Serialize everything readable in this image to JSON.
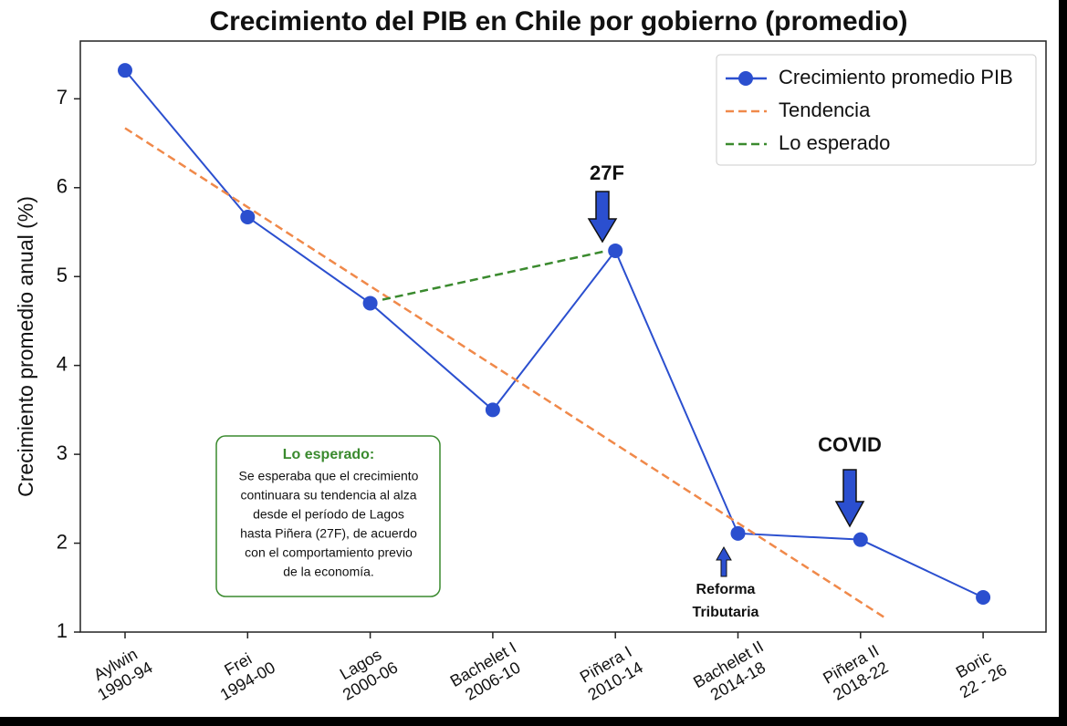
{
  "chart_data": {
    "type": "line",
    "title": "Crecimiento del PIB en Chile por gobierno (promedio)",
    "y_label": "Crecimiento promedio anual (%)",
    "categories": [
      "Aylwin\n1990-94",
      "Frei\n1994-00",
      "Lagos\n2000-06",
      "Bachelet I\n2006-10",
      "Piñera I\n2010-14",
      "Bachelet II\n2014-18",
      "Piñera II\n2018-22",
      "Boric\n22 - 26"
    ],
    "series": [
      {
        "name": "Crecimiento promedio PIB",
        "color": "#2b4fcf",
        "style": "solid-marker",
        "values": [
          7.32,
          5.67,
          4.7,
          3.5,
          5.29,
          2.11,
          2.04,
          1.39
        ]
      },
      {
        "name": "Tendencia",
        "color": "#f0894a",
        "style": "dashed",
        "x": [
          0,
          6.2
        ],
        "values": [
          6.67,
          1.16
        ]
      },
      {
        "name": "Lo esperado",
        "color": "#3a8a2e",
        "style": "dashed",
        "x": [
          2.1,
          3.9
        ],
        "values": [
          4.74,
          5.28
        ]
      }
    ],
    "ylim": [
      1,
      7.65
    ],
    "yticks": [
      1,
      2,
      3,
      4,
      5,
      6,
      7
    ],
    "legend": "upper right",
    "annotations": {
      "shock_27f": "27F",
      "covid": "COVID",
      "reforma": [
        "Reforma",
        "Tributaria"
      ],
      "box_title": "Lo esperado:",
      "box_lines": [
        "Se esperaba que el crecimiento",
        "continuara su tendencia al alza",
        "desde el período de Lagos",
        "hasta Piñera (27F), de acuerdo",
        "con el comportamiento previo",
        "de la economía."
      ]
    }
  }
}
